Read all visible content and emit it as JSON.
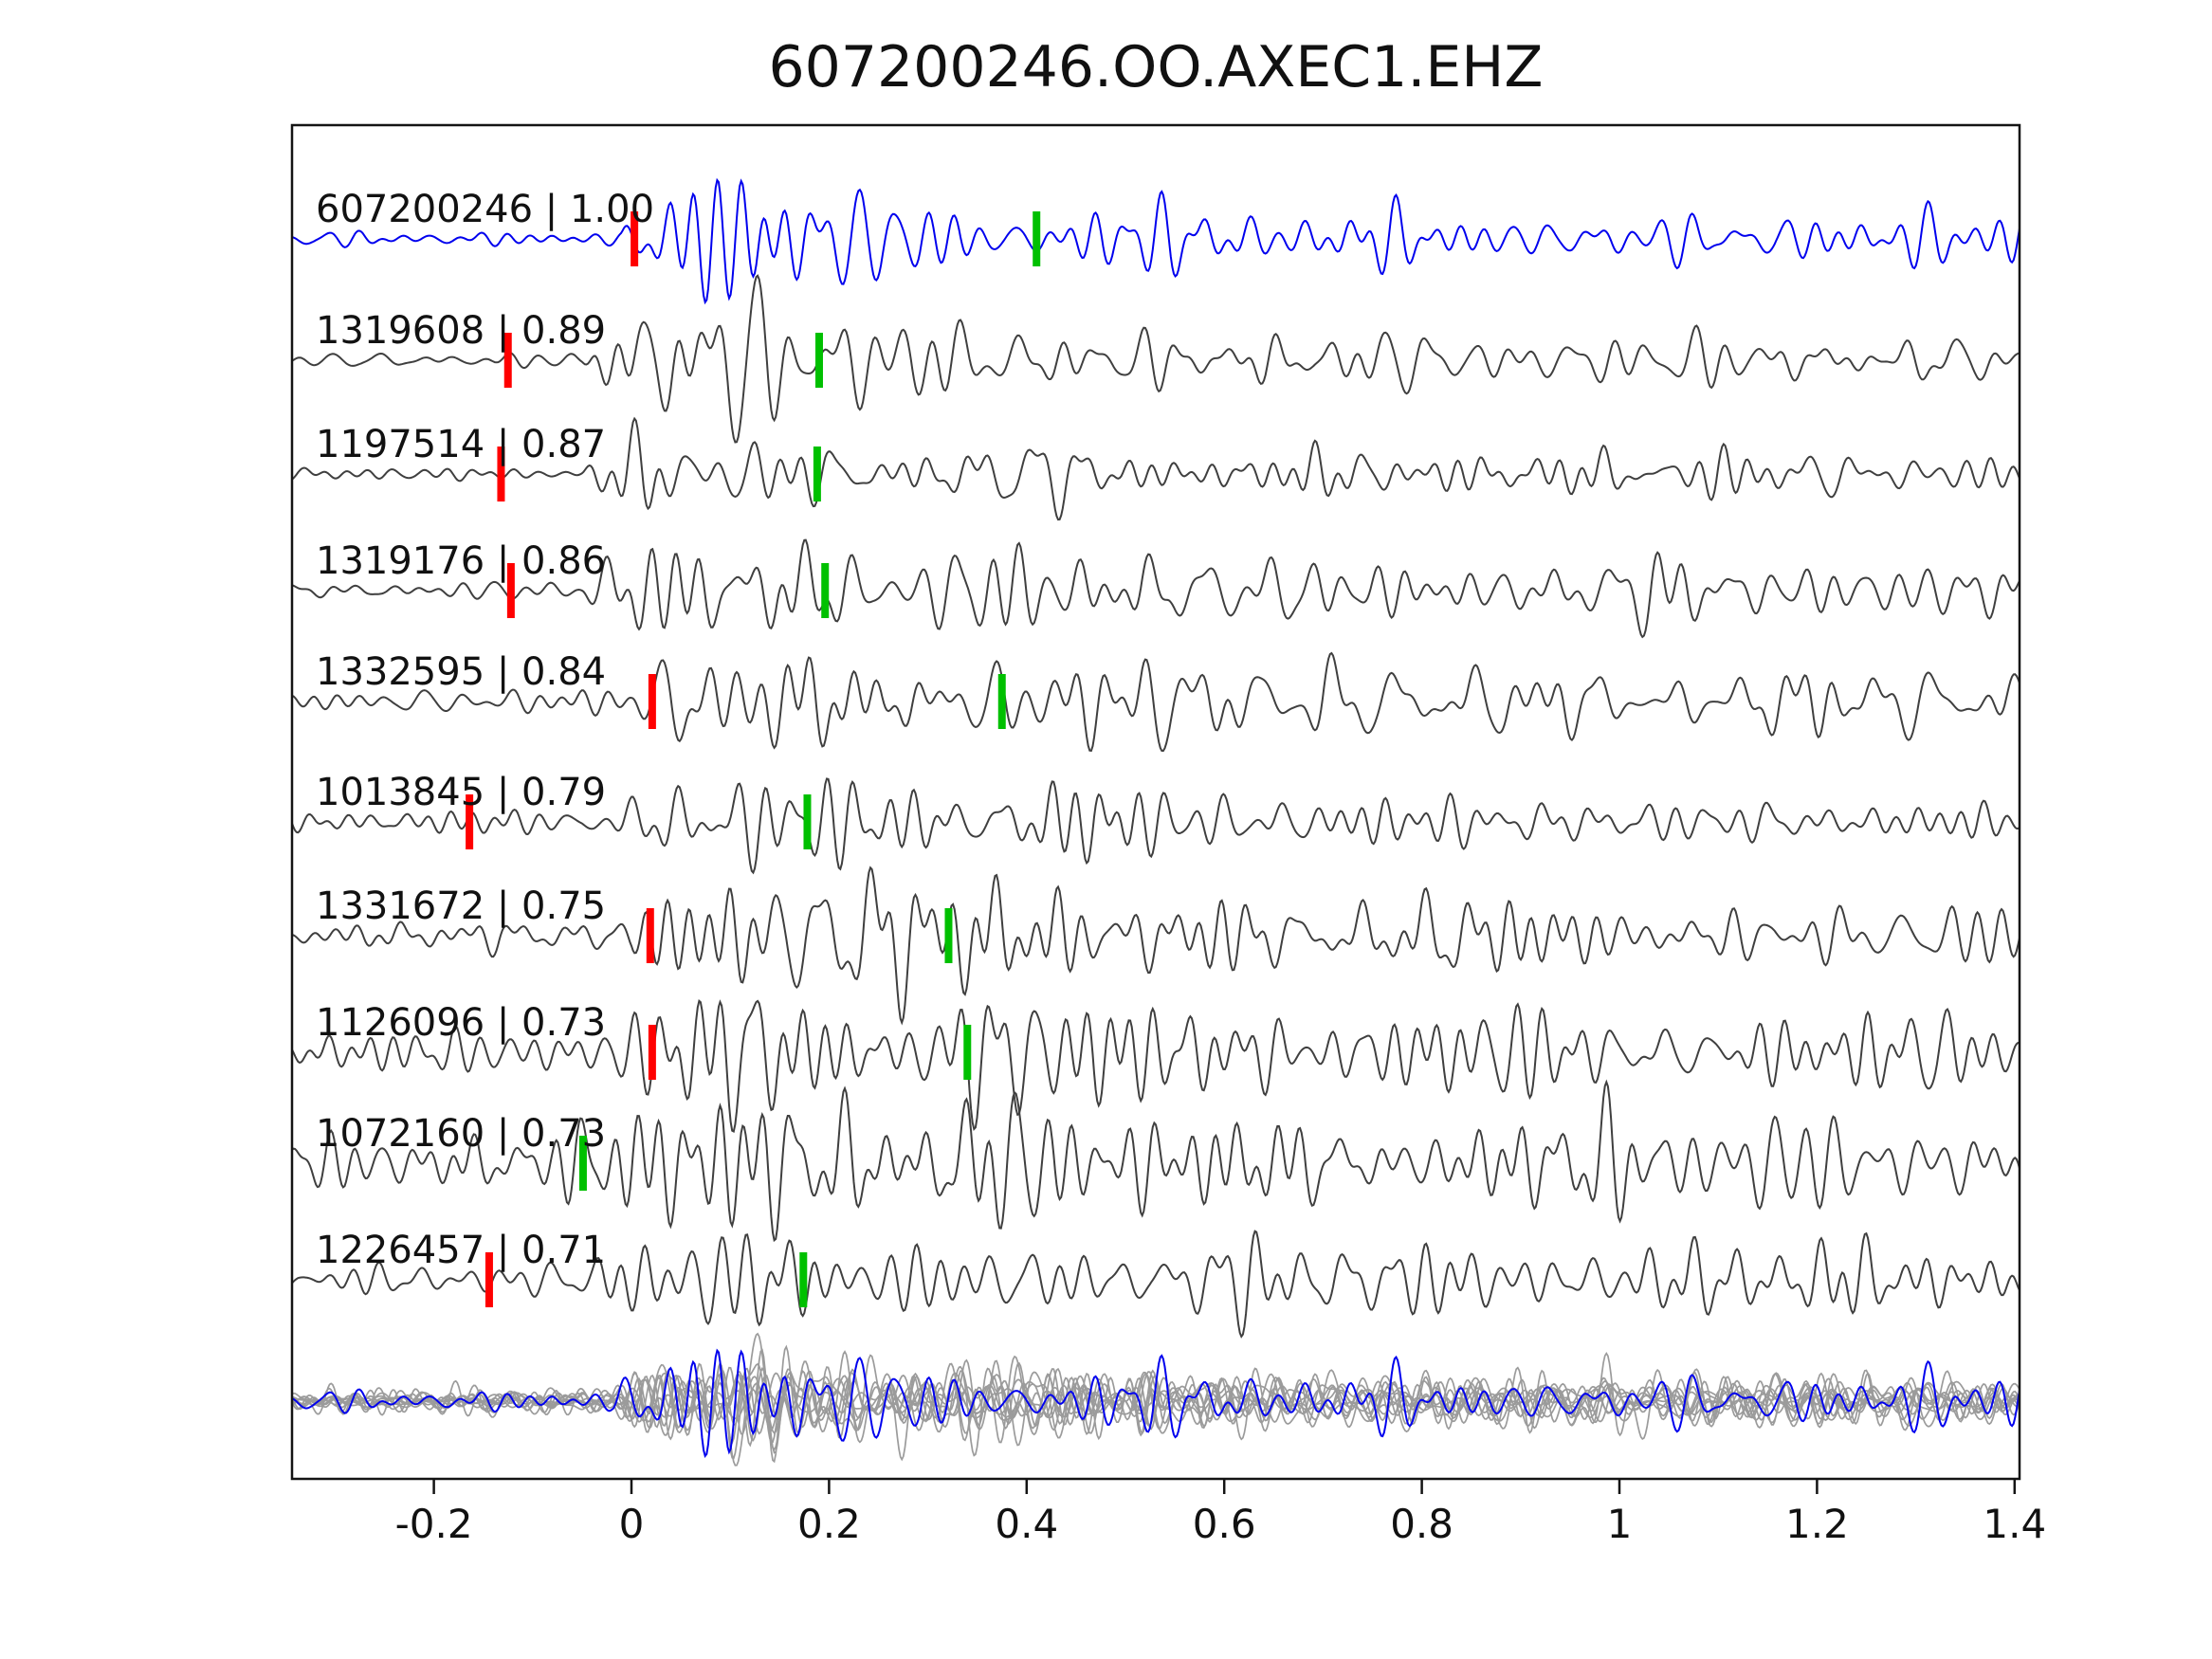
{
  "title": "607200246.OO.AXEC1.EHZ",
  "chart_data": {
    "type": "line",
    "subtype": "seismogram-correlation-section",
    "title": "607200246.OO.AXEC1.EHZ",
    "xlabel": "",
    "ylabel": "",
    "xlim": [
      -0.3435,
      1.405
    ],
    "x_ticks": [
      -0.2,
      0,
      0.2,
      0.4,
      0.6,
      0.8,
      1,
      1.2,
      1.4
    ],
    "x_tick_labels": [
      "-0.2",
      "0",
      "0.2",
      "0.4",
      "0.6",
      "0.8",
      "1",
      "1.2",
      "1.4"
    ],
    "grid": false,
    "legend": false,
    "colors": {
      "template": "#0000ee",
      "match": "#3f3f3f",
      "stack_overlay": "#9b9b9b",
      "stack_template": "#0000ee",
      "pick_red": "#ff0000",
      "pick_green": "#00c000",
      "axis": "#141414",
      "text": "#111111"
    },
    "traces": [
      {
        "id": "607200246",
        "cc": 1.0,
        "label": "607200246 | 1.00",
        "role": "template",
        "pick_red_x": 0.003,
        "pick_green_x": 0.41,
        "onset": -0.01,
        "peak": 1.0,
        "noise": 0.1,
        "coda": 0.3
      },
      {
        "id": "1319608",
        "cc": 0.89,
        "label": "1319608 | 0.89",
        "role": "match",
        "pick_red_x": -0.125,
        "pick_green_x": 0.19,
        "onset": -0.05,
        "peak": 1.15,
        "noise": 0.1,
        "coda": 0.25
      },
      {
        "id": "1197514",
        "cc": 0.87,
        "label": "1197514 | 0.87",
        "role": "match",
        "pick_red_x": -0.132,
        "pick_green_x": 0.188,
        "onset": -0.05,
        "peak": 0.85,
        "noise": 0.1,
        "coda": 0.3
      },
      {
        "id": "1319176",
        "cc": 0.86,
        "label": "1319176 | 0.86",
        "role": "match",
        "pick_red_x": -0.122,
        "pick_green_x": 0.196,
        "onset": -0.05,
        "peak": 1.1,
        "noise": 0.12,
        "coda": 0.3
      },
      {
        "id": "1332595",
        "cc": 0.84,
        "label": "1332595 | 0.84",
        "role": "match",
        "pick_red_x": 0.021,
        "pick_green_x": 0.375,
        "onset": 0.0,
        "peak": 0.75,
        "noise": 0.15,
        "coda": 0.45
      },
      {
        "id": "1013845",
        "cc": 0.79,
        "label": "1013845 | 0.79",
        "role": "match",
        "pick_red_x": -0.164,
        "pick_green_x": 0.178,
        "onset": -0.05,
        "peak": 0.9,
        "noise": 0.16,
        "coda": 0.3
      },
      {
        "id": "1331672",
        "cc": 0.75,
        "label": "1331672 | 0.75",
        "role": "match",
        "pick_red_x": 0.019,
        "pick_green_x": 0.321,
        "onset": 0.0,
        "peak": 0.9,
        "noise": 0.22,
        "coda": 0.45
      },
      {
        "id": "1126096",
        "cc": 0.73,
        "label": "1126096 | 0.73",
        "role": "match",
        "pick_red_x": 0.021,
        "pick_green_x": 0.34,
        "onset": -0.02,
        "peak": 0.95,
        "noise": 0.28,
        "coda": 0.4
      },
      {
        "id": "1072160",
        "cc": 0.73,
        "label": "1072160 | 0.73",
        "role": "match",
        "pick_red_x": null,
        "pick_green_x": -0.049,
        "onset": -0.08,
        "peak": 0.9,
        "noise": 0.42,
        "coda": 0.4
      },
      {
        "id": "1226457",
        "cc": 0.71,
        "label": "1226457 | 0.71",
        "role": "match",
        "pick_red_x": -0.144,
        "pick_green_x": 0.174,
        "onset": -0.04,
        "peak": 0.8,
        "noise": 0.26,
        "coda": 0.45
      }
    ],
    "stack": {
      "description": "aligned overlay of matched traces (gray) with template (blue)",
      "n_gray": 10,
      "onset": -0.02,
      "peak": 0.95,
      "noise": 0.3,
      "coda": 0.35
    }
  }
}
